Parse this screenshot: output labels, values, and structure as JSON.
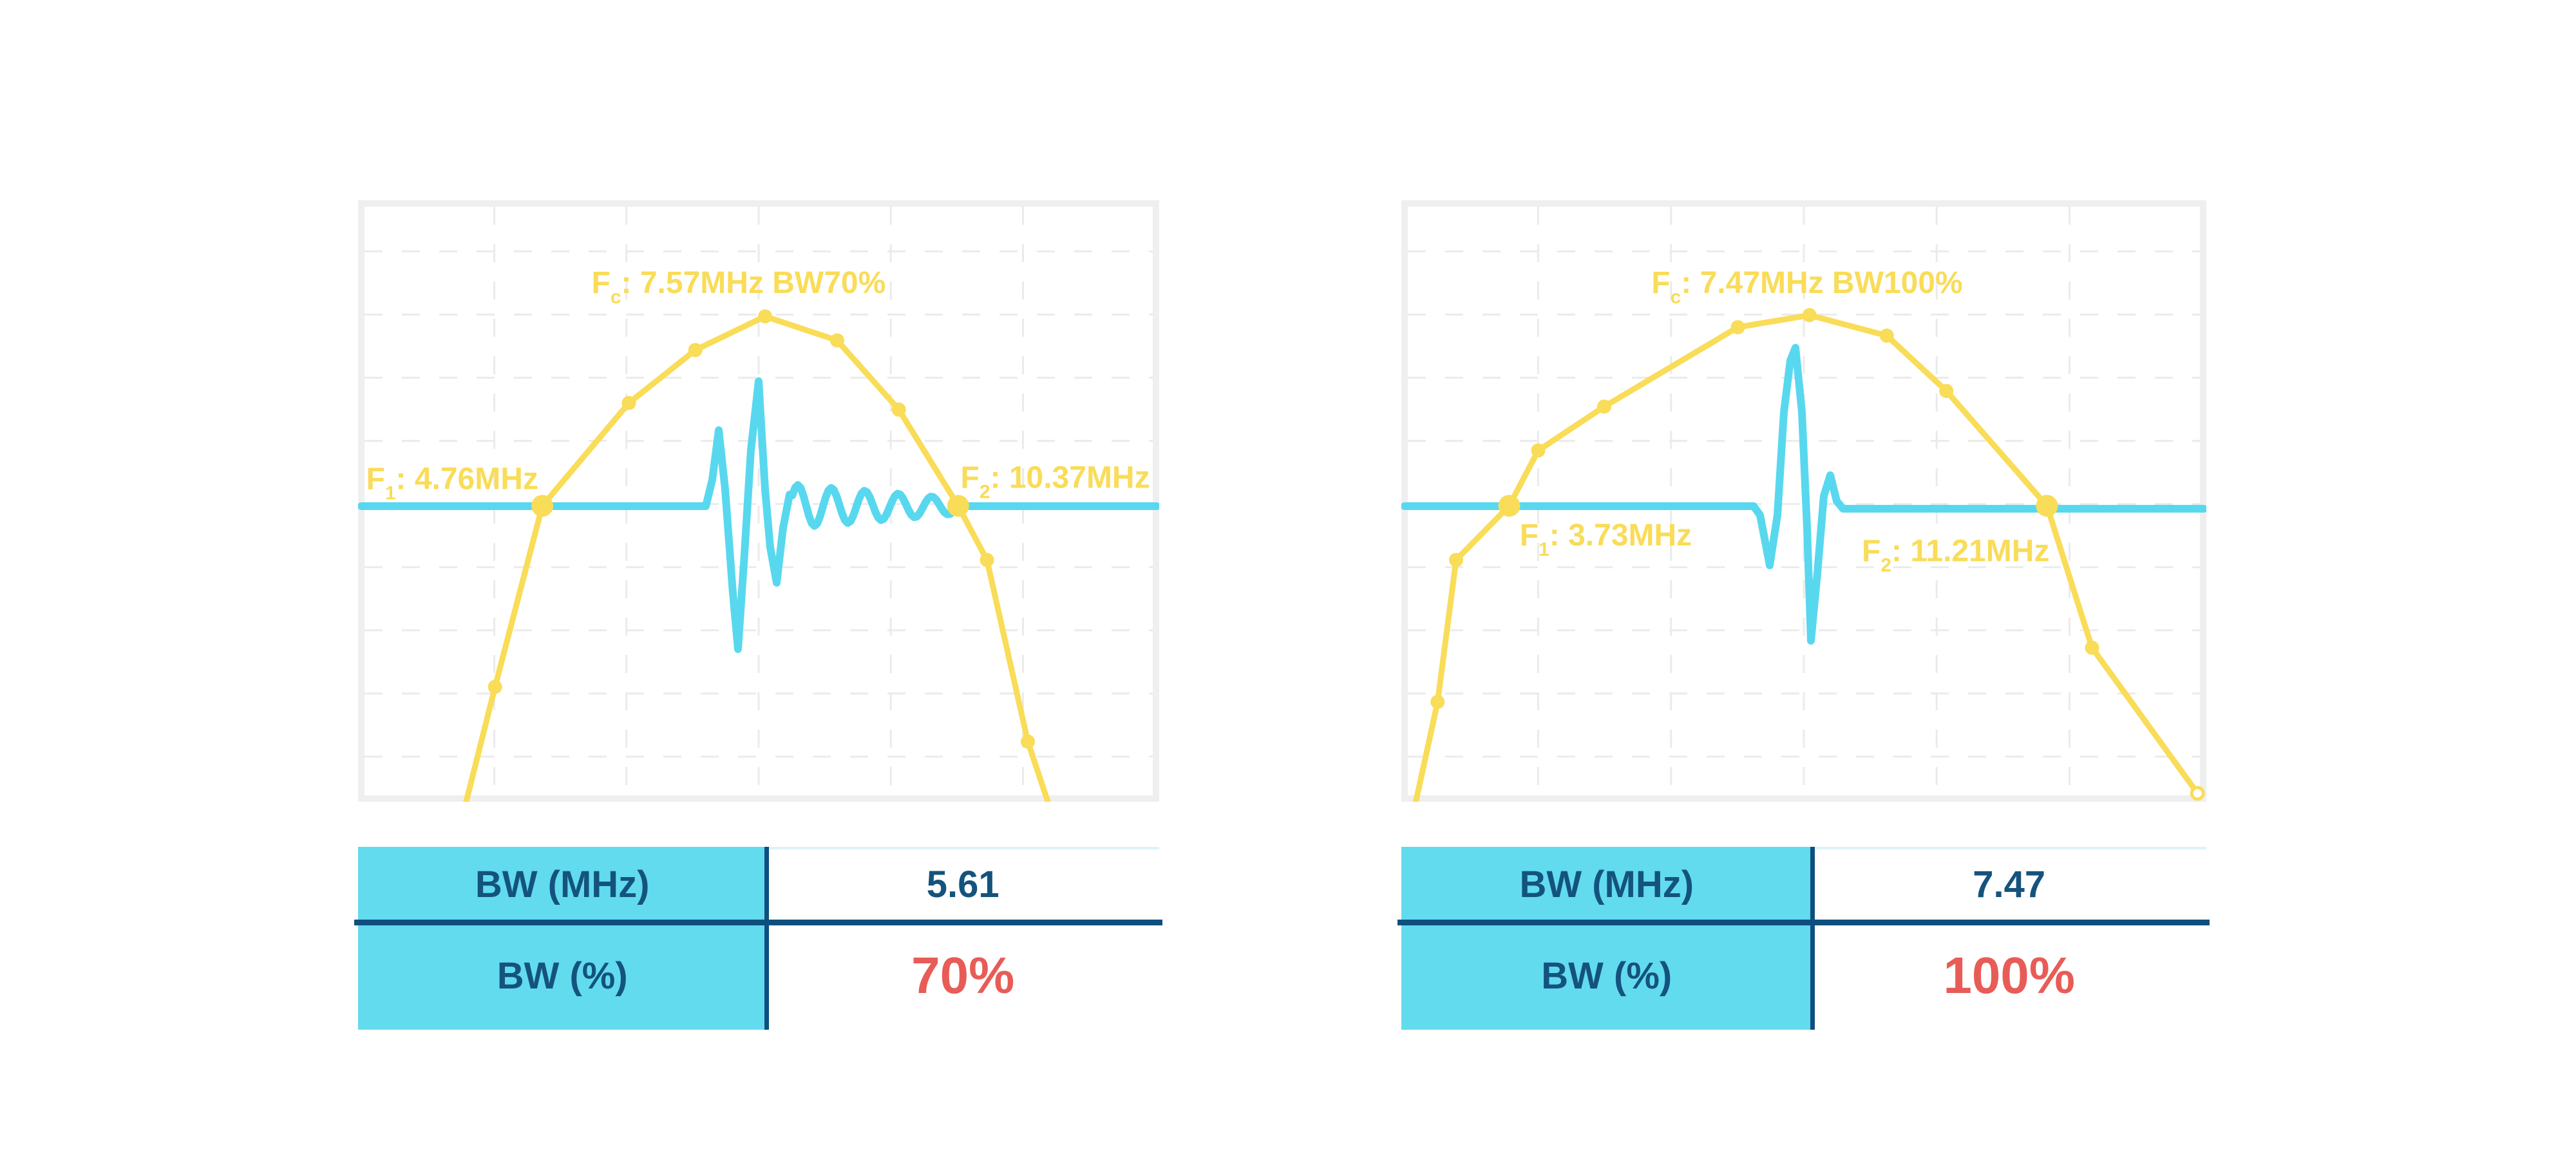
{
  "colors": {
    "background": "#ffffff",
    "yellow": "#F9DC58",
    "cyan_wave": "#58D8EE",
    "table_cyan": "#62DBEE",
    "navy_text": "#14537E",
    "navy_line": "#0E4F7E",
    "red": "#E85C57",
    "frame": "#EFEFEF",
    "grid": "#EBEBEB",
    "table_topline": "#DFF2FA"
  },
  "chart_data": [
    {
      "type": "line",
      "id": "left-spectrum",
      "title_text": "Fc: 7.57MHz BW70%",
      "center_frequency_mhz": 7.57,
      "f1_mhz": 4.76,
      "f2_mhz": 10.37,
      "bandwidth_mhz": 5.61,
      "bandwidth_pct": 70,
      "annotations": [
        {
          "name": "title",
          "pos": [
            0.475,
            0.154
          ],
          "anchor": "middle",
          "f": "F",
          "sub": "c",
          "rest": ": 7.57MHz BW70%"
        },
        {
          "name": "f1-label",
          "pos": [
            0.225,
            0.48
          ],
          "anchor": "end",
          "f": "F",
          "sub": "1",
          "rest": ": 4.76MHz"
        },
        {
          "name": "f2-label",
          "pos": [
            0.752,
            0.478
          ],
          "anchor": "start",
          "f": "F",
          "sub": "2",
          "rest": ": 10.37MHz"
        }
      ],
      "spectrum": [
        [
          0.135,
          1.0,
          ""
        ],
        [
          0.171,
          0.809,
          "m"
        ],
        [
          0.23,
          0.508,
          "big"
        ],
        [
          0.338,
          0.337,
          "m"
        ],
        [
          0.421,
          0.249,
          "m"
        ],
        [
          0.508,
          0.193,
          "m"
        ],
        [
          0.598,
          0.233,
          "m"
        ],
        [
          0.675,
          0.348,
          "m"
        ],
        [
          0.749,
          0.508,
          "big"
        ],
        [
          0.785,
          0.598,
          "m"
        ],
        [
          0.836,
          0.9,
          "m"
        ],
        [
          0.861,
          1.0,
          ""
        ]
      ],
      "waveform": {
        "base": 0.5086,
        "base_after": 0.5086,
        "flat_from": 0.004,
        "flat_to": 0.997,
        "pulse": [
          [
            0.4341,
            0.5086
          ],
          [
            0.4421,
            0.4647
          ],
          [
            0.4502,
            0.3822
          ],
          [
            0.4582,
            0.4807
          ],
          [
            0.4678,
            0.652
          ],
          [
            0.4743,
            0.7462
          ],
          [
            0.4823,
            0.5878
          ],
          [
            0.4903,
            0.4165
          ],
          [
            0.5,
            0.3009
          ],
          [
            0.508,
            0.4807
          ],
          [
            0.5145,
            0.5771
          ],
          [
            0.5225,
            0.636
          ],
          [
            0.5305,
            0.545
          ],
          [
            0.5386,
            0.4893
          ]
        ],
        "ring": {
          "from": 0.5386,
          "to": 0.746,
          "period": 0.0418,
          "amp0": 0.0364,
          "amp1": 0.0128
        }
      },
      "table": {
        "rows": [
          {
            "label": "BW (MHz)",
            "value": "5.61",
            "style": "navy"
          },
          {
            "label": "BW (%)",
            "value": "70%",
            "style": "red"
          }
        ]
      }
    },
    {
      "type": "line",
      "id": "right-spectrum",
      "title_text": "Fc: 7.47MHz BW100%",
      "center_frequency_mhz": 7.47,
      "f1_mhz": 3.73,
      "f2_mhz": 11.21,
      "bandwidth_mhz": 7.47,
      "bandwidth_pct": 100,
      "annotations": [
        {
          "name": "title",
          "pos": [
            0.504,
            0.154
          ],
          "anchor": "middle",
          "f": "F",
          "sub": "c",
          "rest": ": 7.47MHz BW100%"
        },
        {
          "name": "f1-label",
          "pos": [
            0.147,
            0.574
          ],
          "anchor": "start",
          "f": "F",
          "sub": "1",
          "rest": ": 3.73MHz"
        },
        {
          "name": "f2-label",
          "pos": [
            0.572,
            0.6
          ],
          "anchor": "start",
          "f": "F",
          "sub": "2",
          "rest": ": 11.21MHz"
        }
      ],
      "spectrum": [
        [
          0.018,
          1.0,
          ""
        ],
        [
          0.045,
          0.834,
          "m"
        ],
        [
          0.068,
          0.598,
          "m"
        ],
        [
          0.134,
          0.508,
          "big"
        ],
        [
          0.17,
          0.416,
          "m"
        ],
        [
          0.252,
          0.343,
          "m"
        ],
        [
          0.418,
          0.211,
          "m"
        ],
        [
          0.507,
          0.191,
          "m"
        ],
        [
          0.603,
          0.225,
          "m"
        ],
        [
          0.677,
          0.317,
          "m"
        ],
        [
          0.802,
          0.508,
          "big"
        ],
        [
          0.858,
          0.744,
          "m"
        ],
        [
          0.989,
          0.986,
          "open"
        ]
      ],
      "waveform": {
        "base": 0.5086,
        "base_after": 0.5128,
        "flat_from": 0.004,
        "flat_to": 0.997,
        "pulse": [
          [
            0.4376,
            0.5086
          ],
          [
            0.4456,
            0.5235
          ],
          [
            0.4576,
            0.6071
          ],
          [
            0.4672,
            0.5235
          ],
          [
            0.4752,
            0.3522
          ],
          [
            0.4832,
            0.2666
          ],
          [
            0.4896,
            0.2452
          ],
          [
            0.4976,
            0.3522
          ],
          [
            0.504,
            0.545
          ],
          [
            0.5088,
            0.7323
          ],
          [
            0.5168,
            0.6199
          ],
          [
            0.5248,
            0.4914
          ],
          [
            0.5328,
            0.4572
          ],
          [
            0.5408,
            0.5
          ],
          [
            0.5488,
            0.5128
          ]
        ],
        "ring": null
      },
      "table": {
        "rows": [
          {
            "label": "BW (MHz)",
            "value": "7.47",
            "style": "navy"
          },
          {
            "label": "BW (%)",
            "value": "100%",
            "style": "red"
          }
        ]
      }
    }
  ],
  "layout_labels": {
    "figure_left": "pulse-spectrum-70pct",
    "figure_right": "pulse-spectrum-100pct"
  }
}
